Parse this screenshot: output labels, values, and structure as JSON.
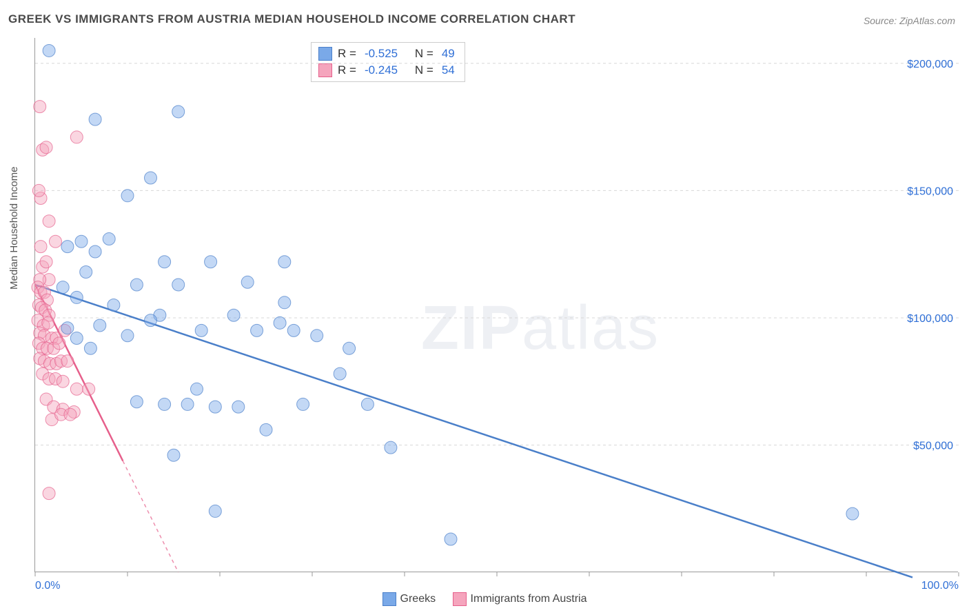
{
  "title": "GREEK VS IMMIGRANTS FROM AUSTRIA MEDIAN HOUSEHOLD INCOME CORRELATION CHART",
  "source": "Source: ZipAtlas.com",
  "y_axis_title": "Median Household Income",
  "watermark": {
    "bold": "ZIP",
    "light": "atlas"
  },
  "chart": {
    "type": "scatter",
    "background_color": "#ffffff",
    "grid_color": "#d8d8d8",
    "axis_color": "#999999",
    "xlim": [
      0,
      100
    ],
    "ylim": [
      0,
      210000
    ],
    "x_ticks": [
      0,
      10,
      20,
      30,
      40,
      50,
      60,
      70,
      80,
      90,
      100
    ],
    "x_tick_labels_shown": {
      "0": "0.0%",
      "100": "100.0%"
    },
    "y_gridlines": [
      50000,
      100000,
      150000,
      200000
    ],
    "y_tick_labels": {
      "50000": "$50,000",
      "100000": "$100,000",
      "150000": "$150,000",
      "200000": "$200,000"
    },
    "x_label_color": "#2f6fd6",
    "y_label_color": "#2f6fd6",
    "label_fontsize": 16,
    "marker_radius": 9,
    "marker_opacity": 0.45,
    "series": [
      {
        "name": "Greeks",
        "fill_color": "#7aa9e8",
        "stroke_color": "#4a7fc9",
        "R": "-0.525",
        "N": "49",
        "regression": {
          "x1": 0,
          "y1": 113000,
          "x2": 95,
          "y2": -2000,
          "solid": true
        },
        "points": [
          [
            1.5,
            205000
          ],
          [
            6.5,
            178000
          ],
          [
            15.5,
            181000
          ],
          [
            12.5,
            155000
          ],
          [
            10,
            148000
          ],
          [
            5,
            130000
          ],
          [
            6.5,
            126000
          ],
          [
            8,
            131000
          ],
          [
            3.5,
            128000
          ],
          [
            5.5,
            118000
          ],
          [
            3,
            112000
          ],
          [
            4.5,
            108000
          ],
          [
            14,
            122000
          ],
          [
            19,
            122000
          ],
          [
            27,
            122000
          ],
          [
            23,
            114000
          ],
          [
            15.5,
            113000
          ],
          [
            11,
            113000
          ],
          [
            13.5,
            101000
          ],
          [
            8.5,
            105000
          ],
          [
            3.5,
            96000
          ],
          [
            4.5,
            92000
          ],
          [
            7,
            97000
          ],
          [
            10,
            93000
          ],
          [
            12.5,
            99000
          ],
          [
            18,
            95000
          ],
          [
            24,
            95000
          ],
          [
            26.5,
            98000
          ],
          [
            28,
            95000
          ],
          [
            21.5,
            101000
          ],
          [
            27,
            106000
          ],
          [
            30.5,
            93000
          ],
          [
            34,
            88000
          ],
          [
            33,
            78000
          ],
          [
            36,
            66000
          ],
          [
            38.5,
            49000
          ],
          [
            29,
            66000
          ],
          [
            25,
            56000
          ],
          [
            22,
            65000
          ],
          [
            19.5,
            65000
          ],
          [
            16.5,
            66000
          ],
          [
            14,
            66000
          ],
          [
            17.5,
            72000
          ],
          [
            11,
            67000
          ],
          [
            15,
            46000
          ],
          [
            19.5,
            24000
          ],
          [
            45,
            13000
          ],
          [
            88.5,
            23000
          ],
          [
            6,
            88000
          ]
        ]
      },
      {
        "name": "Immigrants from Austria",
        "fill_color": "#f5a5bd",
        "stroke_color": "#e65f8b",
        "R": "-0.245",
        "N": "54",
        "regression": {
          "x1": 0,
          "y1": 113000,
          "x2": 15.5,
          "y2": 0,
          "solid_until_x": 9.5
        },
        "points": [
          [
            0.5,
            183000
          ],
          [
            4.5,
            171000
          ],
          [
            0.8,
            166000
          ],
          [
            1.2,
            167000
          ],
          [
            0.6,
            147000
          ],
          [
            0.4,
            150000
          ],
          [
            1.5,
            138000
          ],
          [
            2.2,
            130000
          ],
          [
            0.6,
            128000
          ],
          [
            0.8,
            120000
          ],
          [
            1.2,
            122000
          ],
          [
            1.5,
            115000
          ],
          [
            0.5,
            115000
          ],
          [
            0.3,
            112000
          ],
          [
            0.6,
            110000
          ],
          [
            1.0,
            110000
          ],
          [
            1.3,
            107000
          ],
          [
            0.4,
            105000
          ],
          [
            0.7,
            104000
          ],
          [
            1.1,
            103000
          ],
          [
            1.5,
            101000
          ],
          [
            0.3,
            99000
          ],
          [
            0.9,
            97000
          ],
          [
            1.4,
            98000
          ],
          [
            0.5,
            94000
          ],
          [
            1.0,
            93000
          ],
          [
            1.8,
            92000
          ],
          [
            2.3,
            92000
          ],
          [
            0.4,
            90000
          ],
          [
            0.8,
            88000
          ],
          [
            1.3,
            88000
          ],
          [
            2.0,
            88000
          ],
          [
            3.2,
            95000
          ],
          [
            2.6,
            90000
          ],
          [
            0.5,
            84000
          ],
          [
            1.0,
            83000
          ],
          [
            1.6,
            82000
          ],
          [
            2.3,
            82000
          ],
          [
            2.8,
            83000
          ],
          [
            3.5,
            83000
          ],
          [
            0.8,
            78000
          ],
          [
            1.5,
            76000
          ],
          [
            2.2,
            76000
          ],
          [
            3.0,
            75000
          ],
          [
            4.5,
            72000
          ],
          [
            5.8,
            72000
          ],
          [
            1.2,
            68000
          ],
          [
            2.0,
            65000
          ],
          [
            3.0,
            64000
          ],
          [
            4.2,
            63000
          ],
          [
            1.8,
            60000
          ],
          [
            2.8,
            62000
          ],
          [
            3.8,
            62000
          ],
          [
            1.5,
            31000
          ]
        ]
      }
    ]
  },
  "stats_legend": {
    "R_label": "R =",
    "N_label": "N ="
  },
  "bottom_legend": {
    "items": [
      "Greeks",
      "Immigrants from Austria"
    ]
  }
}
